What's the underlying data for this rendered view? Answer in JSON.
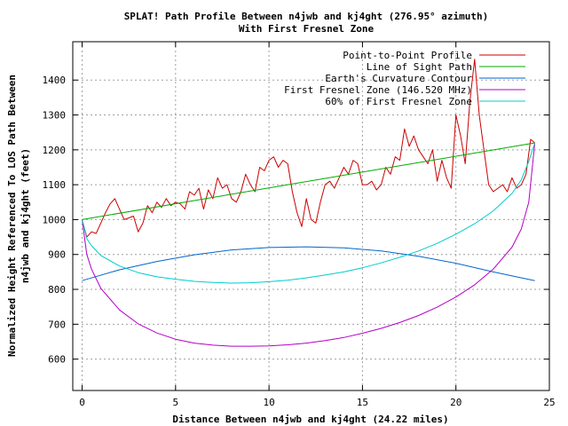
{
  "chart_data": {
    "type": "line",
    "title": "SPLAT! Path Profile Between n4jwb and kj4ght (276.95° azimuth)",
    "subtitle": "With First Fresnel Zone",
    "xlabel": "Distance Between n4jwb and kj4ght (24.22 miles)",
    "ylabel_line1": "Normalized Height Referenced To LOS Path Between",
    "ylabel_line2": "n4jwb and kj4ght (feet)",
    "xlim": [
      -0.5,
      25
    ],
    "ylim": [
      510,
      1510
    ],
    "x_ticks": [
      0,
      5,
      10,
      15,
      20,
      25
    ],
    "y_ticks": [
      600,
      700,
      800,
      900,
      1000,
      1100,
      1200,
      1300,
      1400
    ],
    "grid": true,
    "legend_position": "top-right",
    "series": [
      {
        "name": "Point-to-Point Profile",
        "color": "#cc0000",
        "x": [
          0,
          0.25,
          0.5,
          0.75,
          1.0,
          1.25,
          1.5,
          1.75,
          2.0,
          2.25,
          2.5,
          2.75,
          3.0,
          3.25,
          3.5,
          3.75,
          4.0,
          4.25,
          4.5,
          4.75,
          5.0,
          5.25,
          5.5,
          5.75,
          6.0,
          6.25,
          6.5,
          6.75,
          7.0,
          7.25,
          7.5,
          7.75,
          8.0,
          8.25,
          8.5,
          8.75,
          9.0,
          9.25,
          9.5,
          9.75,
          10.0,
          10.25,
          10.5,
          10.75,
          11.0,
          11.25,
          11.5,
          11.75,
          12.0,
          12.25,
          12.5,
          12.75,
          13.0,
          13.25,
          13.5,
          13.75,
          14.0,
          14.25,
          14.5,
          14.75,
          15.0,
          15.25,
          15.5,
          15.75,
          16.0,
          16.25,
          16.5,
          16.75,
          17.0,
          17.25,
          17.5,
          17.75,
          18.0,
          18.25,
          18.5,
          18.75,
          19.0,
          19.25,
          19.5,
          19.75,
          20.0,
          20.25,
          20.5,
          20.75,
          21.0,
          21.25,
          21.5,
          21.75,
          22.0,
          22.25,
          22.5,
          22.75,
          23.0,
          23.25,
          23.5,
          23.75,
          24.0,
          24.22
        ],
        "values": [
          1000,
          950,
          965,
          960,
          990,
          1020,
          1045,
          1060,
          1030,
          1000,
          1005,
          1010,
          965,
          990,
          1040,
          1020,
          1050,
          1035,
          1060,
          1040,
          1050,
          1045,
          1030,
          1080,
          1070,
          1090,
          1030,
          1085,
          1060,
          1120,
          1090,
          1100,
          1060,
          1050,
          1080,
          1130,
          1100,
          1080,
          1150,
          1140,
          1170,
          1180,
          1150,
          1170,
          1160,
          1080,
          1020,
          980,
          1060,
          1000,
          990,
          1050,
          1100,
          1110,
          1090,
          1120,
          1150,
          1130,
          1170,
          1160,
          1100,
          1100,
          1110,
          1085,
          1100,
          1150,
          1130,
          1180,
          1170,
          1260,
          1210,
          1240,
          1200,
          1180,
          1160,
          1200,
          1110,
          1170,
          1120,
          1090,
          1300,
          1240,
          1160,
          1340,
          1460,
          1300,
          1200,
          1100,
          1080,
          1090,
          1100,
          1080,
          1120,
          1090,
          1100,
          1130,
          1230,
          1220
        ]
      },
      {
        "name": "Line of Sight Path",
        "color": "#00aa00",
        "x": [
          0,
          24.22
        ],
        "values": [
          1000,
          1220
        ]
      },
      {
        "name": "Earth's Curvature Contour",
        "color": "#0066cc",
        "x": [
          0,
          2,
          4,
          6,
          8,
          10,
          12,
          14,
          16,
          18,
          20,
          22,
          24.22
        ],
        "values": [
          825,
          856,
          880,
          899,
          913,
          920,
          922,
          919,
          910,
          895,
          875,
          850,
          825
        ]
      },
      {
        "name": "First Fresnel Zone (146.520 MHz)",
        "color": "#b400c8",
        "x": [
          0,
          0.25,
          0.5,
          1,
          2,
          3,
          4,
          5,
          6,
          7,
          8,
          9,
          10,
          11,
          12,
          13,
          14,
          15,
          16,
          17,
          18,
          19,
          20,
          21,
          22,
          23,
          23.5,
          23.9,
          24.22
        ],
        "values": [
          1000,
          900,
          858,
          803,
          741,
          701,
          675,
          657,
          646,
          640,
          637,
          637,
          638,
          641,
          646,
          653,
          662,
          674,
          688,
          705,
          725,
          749,
          778,
          813,
          858,
          921,
          973,
          1050,
          1220
        ]
      },
      {
        "name": "60% of First Fresnel Zone",
        "color": "#00cccc",
        "x": [
          0,
          0.25,
          0.5,
          1,
          2,
          3,
          4,
          5,
          6,
          7,
          8,
          9,
          10,
          11,
          12,
          13,
          14,
          15,
          16,
          17,
          18,
          19,
          20,
          21,
          22,
          23,
          23.5,
          23.9,
          24.22
        ],
        "values": [
          1000,
          945,
          925,
          897,
          867,
          848,
          836,
          829,
          823,
          820,
          818,
          819,
          822,
          826,
          833,
          841,
          850,
          862,
          876,
          892,
          910,
          932,
          958,
          988,
          1025,
          1075,
          1114,
          1167,
          1220
        ]
      }
    ]
  }
}
